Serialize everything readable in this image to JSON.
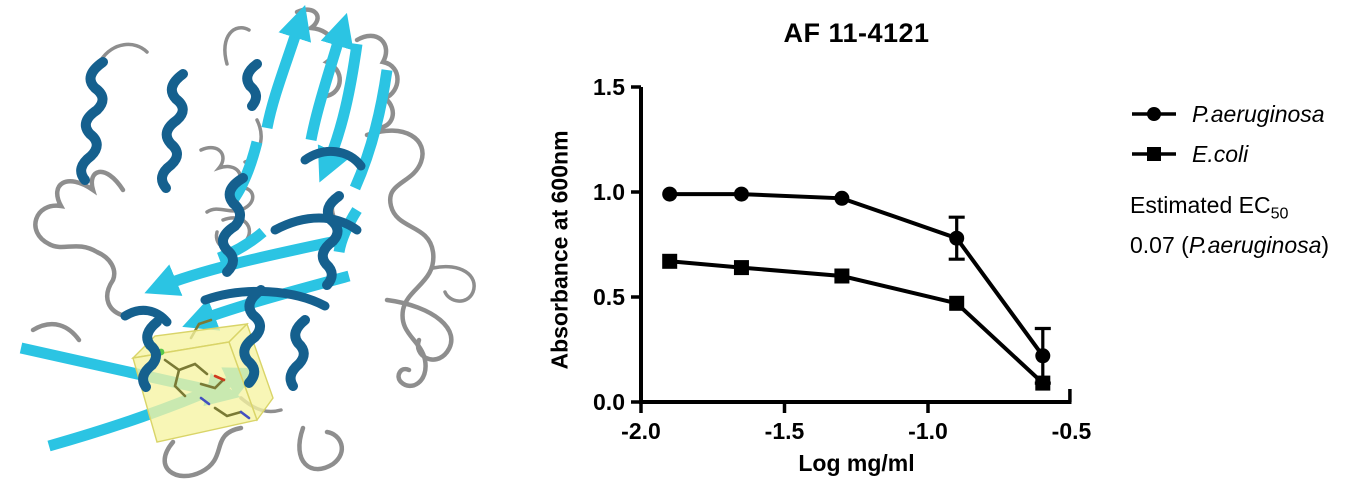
{
  "figure": {
    "background": "#ffffff"
  },
  "protein": {
    "description": "3D protein ribbon diagram: cyan beta strands, dark blue alpha helices, gray loops, translucent yellow box highlighting a ligand-binding site with stick residues",
    "colors": {
      "strand_cyan": "#2bc4e3",
      "helix_blue": "#15608e",
      "loop_gray": "#8e8e8e",
      "site_yellow": "#f6f3a1",
      "stick_olive": "#7a7a35"
    }
  },
  "chart_data": {
    "type": "line",
    "title": "AF 11-4121",
    "xlabel": "Log mg/ml",
    "ylabel": "Absorbance at 600nm",
    "xlim": [
      -2.0,
      -0.5
    ],
    "ylim": [
      0.0,
      1.5
    ],
    "xticks": [
      -2.0,
      -1.5,
      -1.0,
      -0.5
    ],
    "yticks": [
      0.0,
      0.5,
      1.0,
      1.5
    ],
    "grid": false,
    "legend_position": "right",
    "x": [
      -1.9,
      -1.65,
      -1.3,
      -0.9,
      -0.6
    ],
    "series": [
      {
        "name": "P.aeruginosa",
        "marker": "circle",
        "values": [
          0.99,
          0.99,
          0.97,
          0.78,
          0.22
        ],
        "errors": [
          0,
          0,
          0,
          0.1,
          0.13
        ],
        "color": "#000000"
      },
      {
        "name": "E.coli",
        "marker": "square",
        "values": [
          0.67,
          0.64,
          0.6,
          0.47,
          0.09
        ],
        "errors": [
          0,
          0,
          0,
          0,
          0
        ],
        "color": "#000000"
      }
    ]
  },
  "legend": {
    "items": [
      {
        "label": "P.aeruginosa",
        "marker": "circle"
      },
      {
        "label": "E.coli",
        "marker": "square"
      }
    ]
  },
  "ec50": {
    "label_prefix": "Estimated EC",
    "label_subscript": "50",
    "value_prefix": "0.07 (",
    "organism": "P.aeruginosa",
    "value_suffix": ")"
  }
}
